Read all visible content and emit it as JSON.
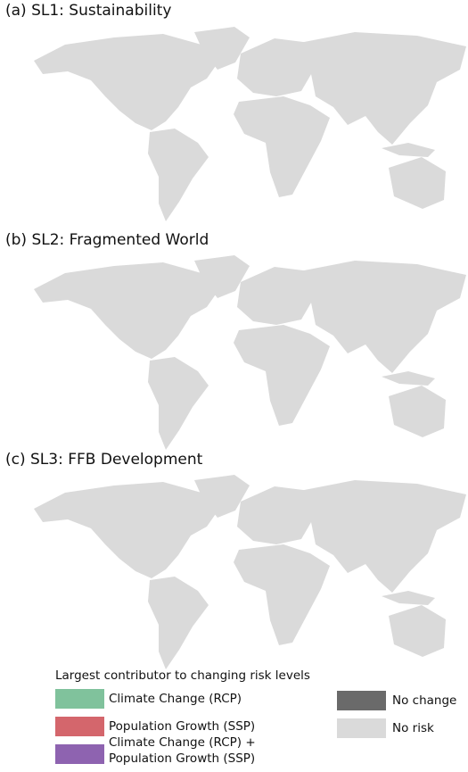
{
  "panels": [
    {
      "title": "(a) SL1: Sustainability"
    },
    {
      "title": "(b) SL2: Fragmented World"
    },
    {
      "title": "(c) SL3: FFB Development"
    }
  ],
  "legend": {
    "title": "Largest contributor to changing risk levels",
    "items": [
      {
        "label_lines": [
          "Climate Change (RCP)"
        ],
        "color": "#80c29c"
      },
      {
        "label_lines": [
          "Population Growth (SSP)"
        ],
        "color": "#d4666c"
      },
      {
        "label_lines": [
          "Climate Change (RCP) +",
          "Population Growth (SSP)"
        ],
        "color": "#8e63b0"
      },
      {
        "label_lines": [
          "No change"
        ],
        "color": "#6a6a6a"
      },
      {
        "label_lines": [
          "No risk"
        ],
        "color": "#dadada"
      }
    ]
  }
}
